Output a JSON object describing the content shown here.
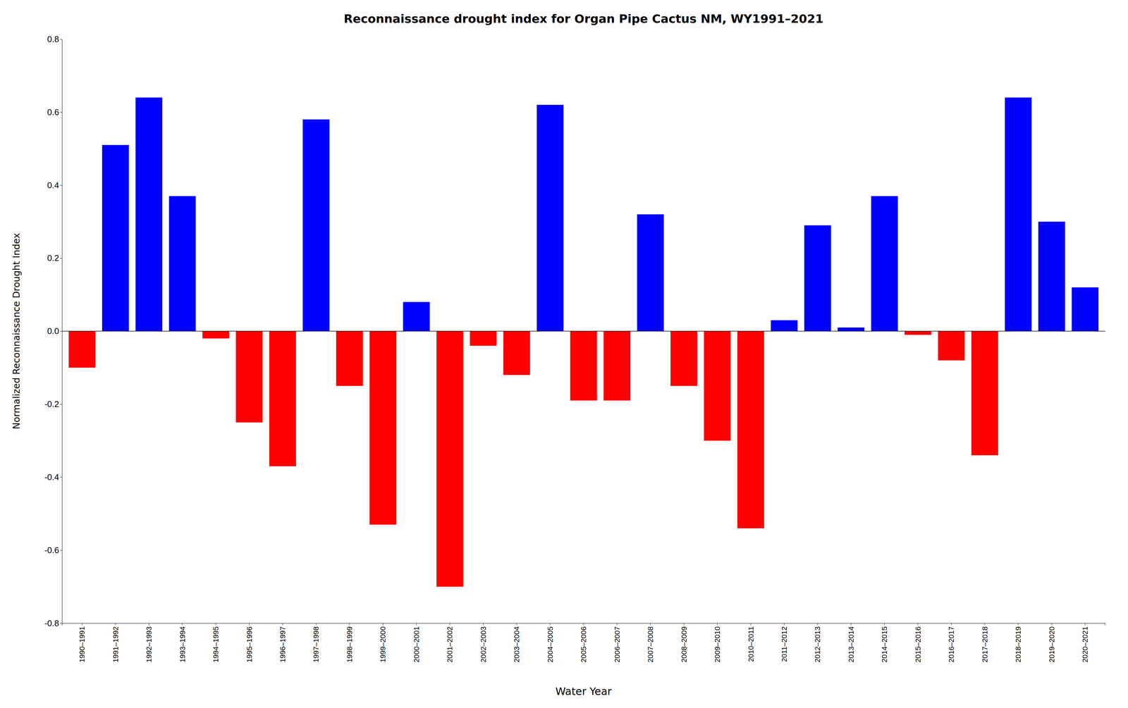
{
  "chart_data": {
    "type": "bar",
    "title": "Reconnaissance drought index for Organ Pipe Cactus NM, WY1991–2021",
    "xlabel": "Water Year",
    "ylabel": "Normalized Reconnaissance Drought Index",
    "categories": [
      "1990–1991",
      "1991–1992",
      "1992–1993",
      "1993–1994",
      "1994–1995",
      "1995–1996",
      "1996–1997",
      "1997–1998",
      "1998–1999",
      "1999–2000",
      "2000–2001",
      "2001–2002",
      "2002–2003",
      "2003–2004",
      "2004–2005",
      "2005–2006",
      "2006–2007",
      "2007–2008",
      "2008–2009",
      "2009–2010",
      "2010–2011",
      "2011–2012",
      "2012–2013",
      "2013–2014",
      "2014–2015",
      "2015–2016",
      "2016–2017",
      "2017–2018",
      "2018–2019",
      "2019–2020",
      "2020–2021"
    ],
    "values": [
      -0.1,
      0.51,
      0.64,
      0.37,
      -0.02,
      -0.25,
      -0.37,
      0.58,
      -0.15,
      -0.53,
      0.08,
      -0.7,
      -0.04,
      -0.12,
      0.62,
      -0.19,
      -0.19,
      0.32,
      -0.15,
      -0.3,
      -0.54,
      0.03,
      0.29,
      0.01,
      0.37,
      -0.01,
      -0.08,
      -0.34,
      0.64,
      0.3,
      0.12
    ],
    "colors": [
      "#FF0000",
      "#0000FF",
      "#0000FF",
      "#0000FF",
      "#FF0000",
      "#FF0000",
      "#FF0000",
      "#0000FF",
      "#FF0000",
      "#FF0000",
      "#0000FF",
      "#FF0000",
      "#FF0000",
      "#FF0000",
      "#0000FF",
      "#FF0000",
      "#FF0000",
      "#0000FF",
      "#FF0000",
      "#FF0000",
      "#FF0000",
      "#0000FF",
      "#0000FF",
      "#0000FF",
      "#0000FF",
      "#FF0000",
      "#FF0000",
      "#FF0000",
      "#0000FF",
      "#0000FF",
      "#0000FF"
    ],
    "ylim": [
      -0.8,
      0.8
    ],
    "yticks": [
      -0.8,
      -0.6,
      -0.4,
      -0.2,
      {
        "value": 0,
        "label": "0.0"
      },
      0.2,
      0.4,
      0.6,
      0.8
    ],
    "grid": false
  }
}
